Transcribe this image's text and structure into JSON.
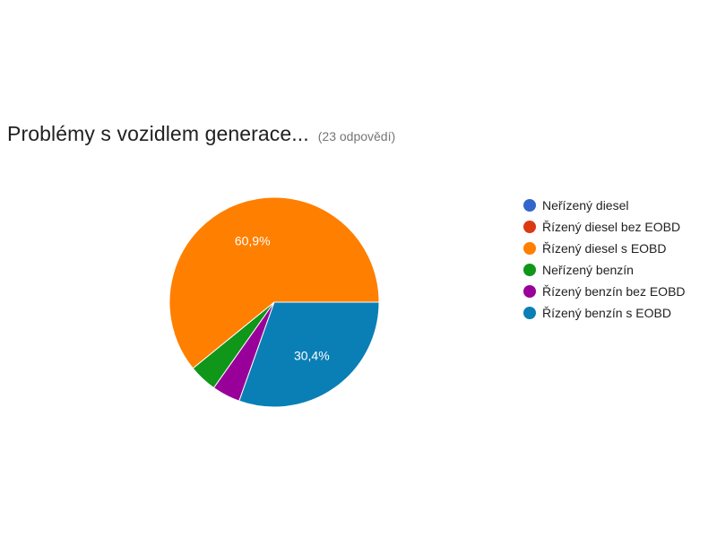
{
  "header": {
    "title": "Problémy s vozidlem generace...",
    "subtitle": "(23 odpovědí)"
  },
  "chart_data": {
    "type": "pie",
    "title": "Problémy s vozidlem generace...",
    "total_responses": 23,
    "legend_position": "right",
    "series": [
      {
        "name": "Neřízený diesel",
        "count": 0,
        "percent": 0,
        "color": "#3366cc"
      },
      {
        "name": "Řízený diesel bez EOBD",
        "count": 0,
        "percent": 0,
        "color": "#dc3912"
      },
      {
        "name": "Řízený diesel s EOBD",
        "count": 14,
        "percent": 60.9,
        "label": "60,9%",
        "color": "#ff7f00"
      },
      {
        "name": "Neřízený benzín",
        "count": 1,
        "percent": 4.3,
        "color": "#109618"
      },
      {
        "name": "Řízený benzín bez EOBD",
        "count": 1,
        "percent": 4.3,
        "color": "#990099"
      },
      {
        "name": "Řízený benzín s EOBD",
        "count": 7,
        "percent": 30.4,
        "label": "30,4%",
        "color": "#0a7fb5"
      }
    ]
  }
}
